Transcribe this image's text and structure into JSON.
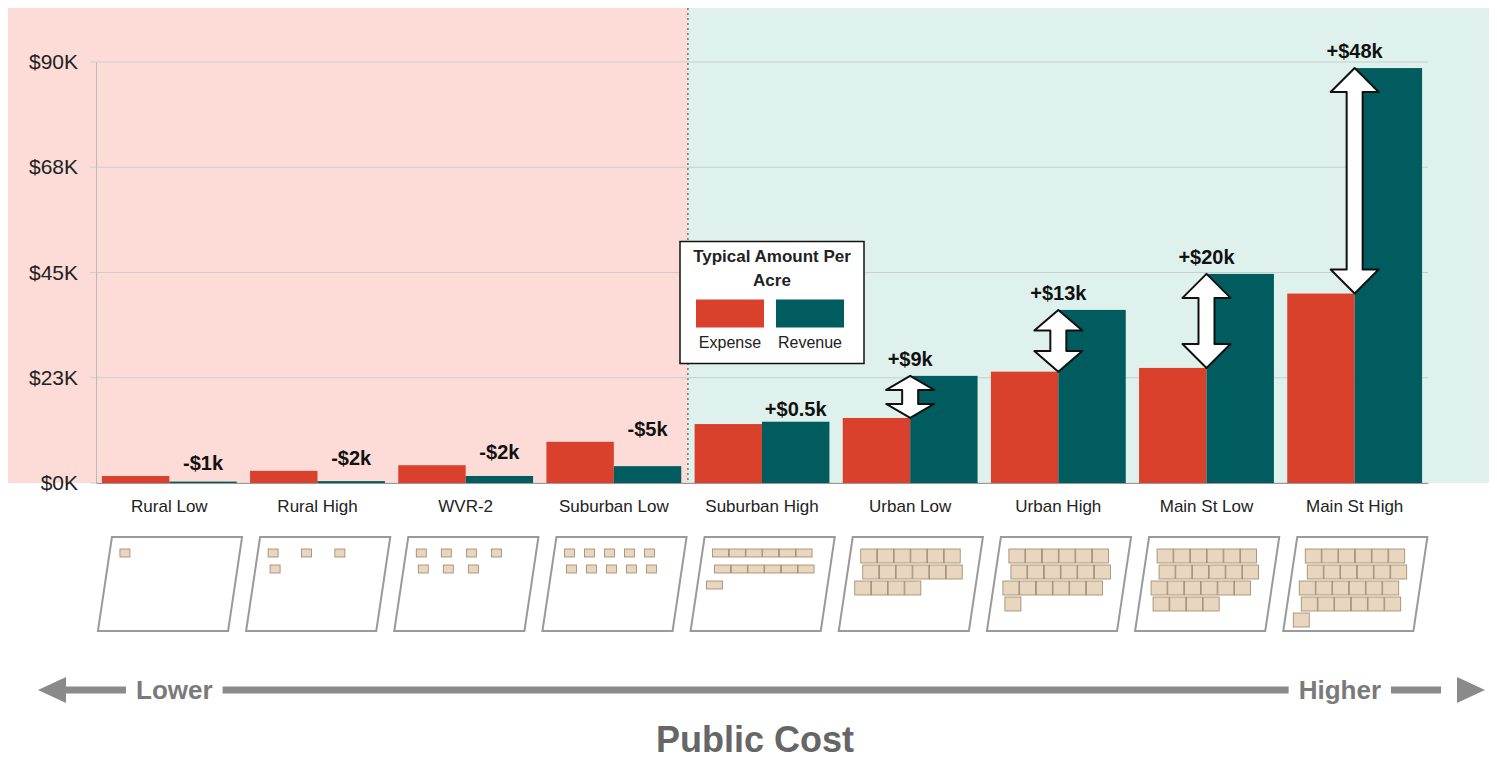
{
  "chart_data": {
    "type": "bar",
    "categories": [
      "Rural Low",
      "Rural High",
      "WVR-2",
      "Suburban Low",
      "Suburban High",
      "Urban Low",
      "Urban High",
      "Main St Low",
      "Main St High"
    ],
    "series": [
      {
        "name": "Expense",
        "color": "#d9412d",
        "values": [
          1500,
          2600,
          3800,
          8800,
          12600,
          13900,
          23800,
          24600,
          40500
        ]
      },
      {
        "name": "Revenue",
        "color": "#005c5e",
        "values": [
          300,
          400,
          1500,
          3600,
          13100,
          22900,
          37000,
          44700,
          88700
        ]
      }
    ],
    "ylim": [
      0,
      90000
    ],
    "yticks": [
      {
        "value": 0,
        "label": "$0K"
      },
      {
        "value": 22500,
        "label": "$23K"
      },
      {
        "value": 45000,
        "label": "$45K"
      },
      {
        "value": 67500,
        "label": "$68K"
      },
      {
        "value": 90000,
        "label": "$90K"
      }
    ],
    "grid": true,
    "legend": "center",
    "legend_title": "Typical Amount Per Acre",
    "annotations": [
      "-$1k",
      "-$2k",
      "-$2k",
      "-$5k",
      "+$0.5k",
      "+$9k",
      "+$13k",
      "+$20k",
      "+$48k"
    ],
    "cost_axis": {
      "low": "Lower",
      "high": "Higher",
      "title": "Public Cost"
    }
  }
}
